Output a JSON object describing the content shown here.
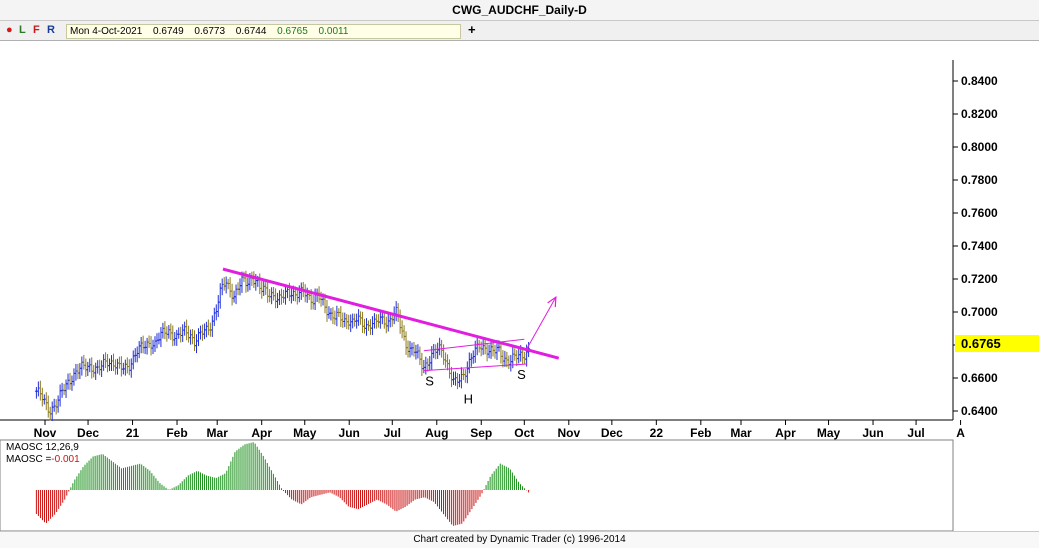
{
  "window": {
    "title": "CWG_AUDCHF_Daily-D"
  },
  "toolbar": {
    "buttons": [
      "L",
      "F",
      "R"
    ],
    "quote": {
      "date": "Mon 4-Oct-2021",
      "open": "0.6749",
      "high": "0.6773",
      "low": "0.6744",
      "close": "0.6765",
      "change": "0.0011"
    },
    "add_symbol": "+"
  },
  "footer": {
    "credit": "Chart created by Dynamic Trader  (c) 1996-2014"
  },
  "colors": {
    "up_bar": "#1f2fd8",
    "down_bar": "#8c7a1e",
    "trendline": "#e11de0",
    "osc_pos": "#1a8f1a",
    "osc_neg": "#cc1111",
    "price_tag": "#ffff00"
  },
  "chart_data": [
    {
      "type": "ohlc",
      "title": "CWG_AUDCHF_Daily-D",
      "ylim": [
        0.635,
        0.845
      ],
      "y_ticks": [
        0.64,
        0.66,
        0.68,
        0.7,
        0.72,
        0.74,
        0.76,
        0.78,
        0.8,
        0.82,
        0.84
      ],
      "y_tick_labels": [
        "0.6400",
        "0.6600",
        "0.6800",
        "0.7000",
        "0.7200",
        "0.7400",
        "0.7600",
        "0.7800",
        "0.8000",
        "0.8200",
        "0.8400"
      ],
      "x_tick_labels": [
        "Nov",
        "Dec",
        "21",
        "Feb",
        "Mar",
        "Apr",
        "May",
        "Jun",
        "Jul",
        "Aug",
        "Sep",
        "Oct",
        "Nov",
        "Dec",
        "22",
        "Feb",
        "Mar",
        "Apr",
        "May",
        "Jun",
        "Jul",
        "A"
      ],
      "last_price": "0.6765",
      "series": [
        {
          "close": [
            0.652,
            0.649,
            0.644,
            0.641,
            0.643,
            0.646,
            0.652,
            0.657,
            0.661,
            0.663,
            0.665,
            0.667,
            0.668,
            0.666,
            0.664,
            0.667,
            0.671,
            0.67,
            0.668,
            0.665,
            0.666,
            0.668,
            0.672,
            0.676,
            0.678,
            0.681,
            0.682,
            0.68,
            0.684,
            0.688,
            0.69,
            0.686,
            0.683,
            0.687,
            0.69,
            0.687,
            0.681,
            0.684,
            0.689,
            0.691,
            0.694,
            0.701,
            0.713,
            0.72,
            0.715,
            0.708,
            0.714,
            0.72,
            0.719,
            0.721,
            0.717,
            0.713,
            0.715,
            0.712,
            0.709,
            0.705,
            0.71,
            0.714,
            0.712,
            0.708,
            0.711,
            0.714,
            0.71,
            0.706,
            0.709,
            0.707,
            0.703,
            0.698,
            0.696,
            0.697,
            0.695,
            0.696,
            0.693,
            0.695,
            0.694,
            0.692,
            0.693,
            0.692,
            0.695,
            0.696,
            0.694,
            0.697,
            0.699,
            0.69,
            0.682,
            0.677,
            0.676,
            0.672,
            0.667,
            0.67,
            0.673,
            0.676,
            0.678,
            0.673,
            0.664,
            0.656,
            0.658,
            0.662,
            0.667,
            0.672,
            0.676,
            0.68,
            0.679,
            0.677,
            0.675,
            0.677,
            0.674,
            0.671,
            0.67,
            0.672,
            0.674,
            0.675,
            0.6765
          ]
        }
      ],
      "annotations": [
        {
          "text": "S",
          "date": "2021-07-27",
          "price": 0.6585
        },
        {
          "text": "H",
          "date": "2021-08-23",
          "price": 0.6475
        },
        {
          "text": "S",
          "date": "2021-09-29",
          "price": 0.6625
        }
      ],
      "trendlines": [
        {
          "from": [
            "2021-03-05",
            0.726
          ],
          "to": [
            "2021-10-25",
            0.672
          ]
        },
        {
          "from": [
            "2021-07-23",
            0.6645
          ],
          "to": [
            "2021-10-03",
            0.6685
          ]
        },
        {
          "from": [
            "2021-07-23",
            0.6765
          ],
          "to": [
            "2021-10-01",
            0.6835
          ]
        },
        {
          "from": [
            "2021-10-02",
            0.6765
          ],
          "to": [
            "2021-10-23",
            0.709
          ]
        }
      ]
    },
    {
      "type": "bar",
      "title": "MAOSC 12,26,9",
      "value_label": "MAOSC =",
      "value": "-0.001",
      "ylim": [
        -0.8,
        1.0
      ],
      "values": [
        -0.5,
        -0.7,
        -0.5,
        -0.2,
        0.2,
        0.5,
        0.7,
        0.75,
        0.6,
        0.45,
        0.5,
        0.55,
        0.4,
        0.15,
        0.0,
        0.1,
        0.3,
        0.4,
        0.3,
        0.25,
        0.35,
        0.8,
        0.95,
        1.0,
        0.7,
        0.35,
        0.0,
        -0.2,
        -0.3,
        -0.15,
        -0.1,
        -0.05,
        -0.15,
        -0.35,
        -0.4,
        -0.3,
        -0.2,
        -0.3,
        -0.45,
        -0.35,
        -0.2,
        -0.15,
        -0.25,
        -0.5,
        -0.75,
        -0.7,
        -0.4,
        -0.1,
        0.3,
        0.55,
        0.45,
        0.15,
        -0.05
      ]
    }
  ]
}
